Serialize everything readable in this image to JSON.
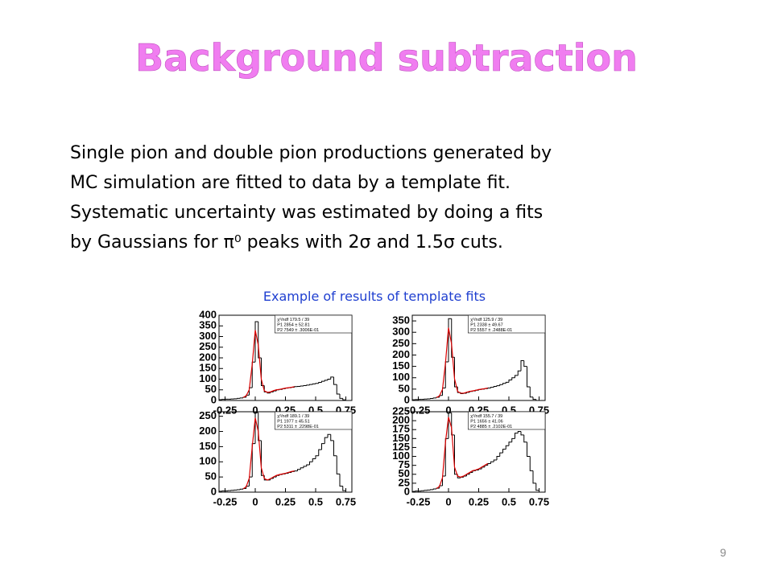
{
  "slide": {
    "title": "Background subtraction",
    "body": [
      "Single pion and double pion productions generated by",
      "MC simulation are fitted to data by a template fit.",
      "Systematic uncertainty was estimated by doing a fits",
      "by Gaussians for π⁰ peaks with 2σ and 1.5σ cuts."
    ],
    "caption": "Example of results of template fits",
    "page_number": "9"
  },
  "chart_data": [
    {
      "type": "histogram",
      "bins": [
        -0.3,
        -0.275,
        -0.25,
        -0.225,
        -0.2,
        -0.175,
        -0.15,
        -0.125,
        -0.1,
        -0.075,
        -0.05,
        -0.025,
        0,
        0.025,
        0.05,
        0.075,
        0.1,
        0.125,
        0.15,
        0.175,
        0.2,
        0.225,
        0.25,
        0.275,
        0.3,
        0.325,
        0.35,
        0.375,
        0.4,
        0.425,
        0.45,
        0.475,
        0.5,
        0.525,
        0.55,
        0.575,
        0.6,
        0.625,
        0.65,
        0.675,
        0.7,
        0.725,
        0.75,
        0.775,
        0.8
      ],
      "values": [
        4,
        5,
        6,
        6,
        7,
        8,
        10,
        12,
        15,
        25,
        60,
        180,
        370,
        200,
        70,
        40,
        35,
        40,
        45,
        50,
        52,
        55,
        58,
        60,
        62,
        65,
        66,
        68,
        70,
        72,
        75,
        78,
        80,
        85,
        90,
        95,
        100,
        110,
        75,
        30,
        10,
        3,
        0,
        0
      ],
      "fit": [
        null,
        null,
        null,
        null,
        null,
        null,
        null,
        null,
        14,
        22,
        50,
        170,
        330,
        260,
        100,
        45,
        38,
        40,
        46,
        50,
        52,
        55,
        58,
        60,
        62,
        65,
        null,
        null,
        null,
        null,
        null,
        null,
        null,
        null,
        null,
        null,
        null,
        null,
        null,
        null,
        null,
        null,
        null,
        null,
        null
      ],
      "color": "#000000",
      "fit_color": "#dd0000",
      "xlim": [
        -0.3,
        0.8
      ],
      "xticks": [
        -0.25,
        0,
        0.25,
        0.5,
        0.75
      ],
      "ylim": [
        0,
        400
      ],
      "yticks": [
        0,
        50,
        100,
        150,
        200,
        250,
        300,
        350,
        400
      ],
      "stats": [
        "χ²/ndf 179.5 / 39",
        "P1 2854 ± 52.81",
        "P2 7549 ± .3006E-01"
      ]
    },
    {
      "type": "histogram",
      "bins": [
        -0.3,
        -0.275,
        -0.25,
        -0.225,
        -0.2,
        -0.175,
        -0.15,
        -0.125,
        -0.1,
        -0.075,
        -0.05,
        -0.025,
        0,
        0.025,
        0.05,
        0.075,
        0.1,
        0.125,
        0.15,
        0.175,
        0.2,
        0.225,
        0.25,
        0.275,
        0.3,
        0.325,
        0.35,
        0.375,
        0.4,
        0.425,
        0.45,
        0.475,
        0.5,
        0.525,
        0.55,
        0.575,
        0.6,
        0.625,
        0.65,
        0.675,
        0.7,
        0.725,
        0.75,
        0.775,
        0.8
      ],
      "values": [
        3,
        4,
        5,
        5,
        6,
        7,
        9,
        11,
        14,
        22,
        55,
        170,
        360,
        190,
        60,
        35,
        30,
        32,
        36,
        40,
        42,
        45,
        48,
        50,
        52,
        55,
        58,
        62,
        65,
        70,
        75,
        80,
        90,
        100,
        110,
        130,
        175,
        150,
        60,
        15,
        5,
        0,
        0,
        0
      ],
      "fit": [
        null,
        null,
        null,
        null,
        null,
        null,
        null,
        null,
        13,
        20,
        48,
        165,
        320,
        250,
        95,
        40,
        32,
        32,
        36,
        40,
        42,
        45,
        48,
        50,
        52,
        55,
        null,
        null,
        null,
        null,
        null,
        null,
        null,
        null,
        null,
        null,
        null,
        null,
        null,
        null,
        null,
        null,
        null,
        null,
        null
      ],
      "color": "#000000",
      "fit_color": "#dd0000",
      "xlim": [
        -0.3,
        0.8
      ],
      "xticks": [
        -0.25,
        0,
        0.25,
        0.5,
        0.75
      ],
      "ylim": [
        0,
        375
      ],
      "yticks": [
        0,
        50,
        100,
        150,
        200,
        250,
        300,
        350
      ],
      "stats": [
        "χ²/ndf 125.9 / 39",
        "P1 2338 ± 49.67",
        "P2 5557 ± .2488E-01"
      ]
    },
    {
      "type": "histogram",
      "bins": [
        -0.3,
        -0.275,
        -0.25,
        -0.225,
        -0.2,
        -0.175,
        -0.15,
        -0.125,
        -0.1,
        -0.075,
        -0.05,
        -0.025,
        0,
        0.025,
        0.05,
        0.075,
        0.1,
        0.125,
        0.15,
        0.175,
        0.2,
        0.225,
        0.25,
        0.275,
        0.3,
        0.325,
        0.35,
        0.375,
        0.4,
        0.425,
        0.45,
        0.475,
        0.5,
        0.525,
        0.55,
        0.575,
        0.6,
        0.625,
        0.65,
        0.675,
        0.7,
        0.725,
        0.75,
        0.775,
        0.8
      ],
      "values": [
        3,
        4,
        4,
        5,
        6,
        7,
        8,
        10,
        12,
        20,
        50,
        160,
        262,
        170,
        55,
        40,
        40,
        45,
        50,
        55,
        58,
        60,
        62,
        65,
        68,
        70,
        75,
        80,
        85,
        90,
        100,
        110,
        120,
        140,
        160,
        180,
        190,
        170,
        120,
        60,
        20,
        5,
        0,
        0
      ],
      "fit": [
        null,
        null,
        null,
        null,
        null,
        null,
        null,
        null,
        11,
        18,
        45,
        150,
        245,
        200,
        80,
        45,
        40,
        44,
        50,
        55,
        58,
        60,
        62,
        65,
        68,
        70,
        null,
        null,
        null,
        null,
        null,
        null,
        null,
        null,
        null,
        null,
        null,
        null,
        null,
        null,
        null,
        null,
        null,
        null,
        null
      ],
      "color": "#000000",
      "fit_color": "#dd0000",
      "xlim": [
        -0.3,
        0.8
      ],
      "xticks": [
        -0.25,
        0,
        0.25,
        0.5,
        0.75
      ],
      "ylim": [
        0,
        265
      ],
      "yticks": [
        0,
        50,
        100,
        150,
        200,
        250
      ],
      "stats": [
        "χ²/ndf 189.1 / 39",
        "P1 1977 ± 45.51",
        "P2 5311 ± .2298E-01"
      ]
    },
    {
      "type": "histogram",
      "bins": [
        -0.3,
        -0.275,
        -0.25,
        -0.225,
        -0.2,
        -0.175,
        -0.15,
        -0.125,
        -0.1,
        -0.075,
        -0.05,
        -0.025,
        0,
        0.025,
        0.05,
        0.075,
        0.1,
        0.125,
        0.15,
        0.175,
        0.2,
        0.225,
        0.25,
        0.275,
        0.3,
        0.325,
        0.35,
        0.375,
        0.4,
        0.425,
        0.45,
        0.475,
        0.5,
        0.525,
        0.55,
        0.575,
        0.6,
        0.625,
        0.65,
        0.675,
        0.7,
        0.725,
        0.75,
        0.775,
        0.8
      ],
      "values": [
        2,
        3,
        3,
        4,
        5,
        6,
        7,
        9,
        11,
        18,
        45,
        150,
        222,
        160,
        50,
        40,
        42,
        45,
        50,
        55,
        60,
        62,
        65,
        70,
        75,
        80,
        85,
        90,
        100,
        110,
        120,
        130,
        140,
        150,
        165,
        170,
        160,
        140,
        100,
        60,
        25,
        5,
        0,
        0
      ],
      "fit": [
        null,
        null,
        null,
        null,
        null,
        null,
        null,
        null,
        10,
        16,
        40,
        140,
        210,
        180,
        70,
        45,
        42,
        45,
        50,
        55,
        60,
        62,
        65,
        70,
        75,
        80,
        null,
        null,
        null,
        null,
        null,
        null,
        null,
        null,
        null,
        null,
        null,
        null,
        null,
        null,
        null,
        null,
        null,
        null,
        null
      ],
      "color": "#000000",
      "fit_color": "#dd0000",
      "xlim": [
        -0.3,
        0.8
      ],
      "xticks": [
        -0.25,
        0,
        0.25,
        0.5,
        0.75
      ],
      "ylim": [
        0,
        225
      ],
      "yticks": [
        0,
        25,
        50,
        75,
        100,
        125,
        150,
        175,
        200,
        225
      ],
      "stats": [
        "χ²/ndf 155.7 / 39",
        "P1 1656 ± 41.06",
        "P2 4885 ± .2102E-01"
      ]
    }
  ]
}
